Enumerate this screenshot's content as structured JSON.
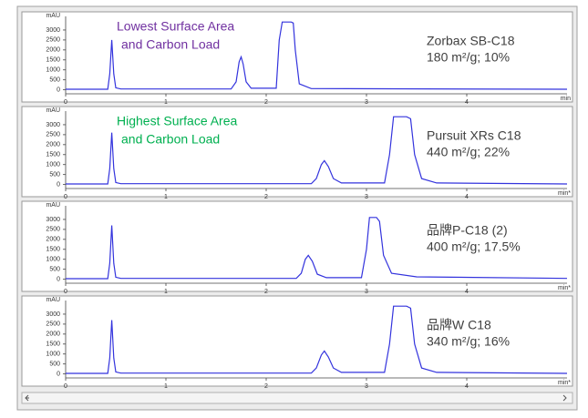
{
  "chart_data": [
    {
      "type": "line",
      "y_label": "mAU",
      "x_label": "min",
      "annotations": [
        "Lowest Surface Area",
        "and Carbon Load"
      ],
      "annotation_color": "#7030a0",
      "labels": [
        "Zorbax SB-C18",
        "180 m²/g; 10%"
      ],
      "xlim": [
        0,
        5
      ],
      "ylim": [
        -200,
        3500
      ],
      "xticks": [
        0,
        1,
        2,
        3,
        4
      ],
      "yticks": [
        0,
        500,
        1000,
        1500,
        2000,
        2500,
        3000
      ],
      "x": [
        0,
        0.42,
        0.44,
        0.46,
        0.48,
        0.5,
        0.55,
        1.65,
        1.7,
        1.73,
        1.75,
        1.77,
        1.8,
        1.85,
        2.1,
        2.13,
        2.16,
        2.25,
        2.27,
        2.29,
        2.33,
        2.45,
        5
      ],
      "series": [
        {
          "color": "#3333dd",
          "values": [
            30,
            30,
            800,
            2500,
            800,
            100,
            40,
            40,
            400,
            1400,
            1650,
            1300,
            400,
            80,
            80,
            2500,
            3400,
            3400,
            3350,
            2000,
            300,
            60,
            30
          ]
        }
      ]
    },
    {
      "type": "line",
      "y_label": "mAU",
      "x_label": "min*",
      "annotations": [
        "Highest Surface Area",
        "and Carbon Load"
      ],
      "annotation_color": "#00b050",
      "labels": [
        "Pursuit XRs C18",
        "440 m²/g; 22%"
      ],
      "xlim": [
        0,
        5
      ],
      "ylim": [
        -200,
        3500
      ],
      "xticks": [
        0,
        1,
        2,
        3,
        4
      ],
      "yticks": [
        0,
        500,
        1000,
        1500,
        2000,
        2500,
        3000
      ],
      "x": [
        0,
        0.42,
        0.44,
        0.46,
        0.48,
        0.5,
        0.55,
        2.45,
        2.5,
        2.55,
        2.58,
        2.62,
        2.67,
        2.75,
        3.18,
        3.23,
        3.27,
        3.4,
        3.44,
        3.48,
        3.55,
        3.7,
        5
      ],
      "series": [
        {
          "color": "#3333dd",
          "values": [
            30,
            30,
            800,
            2600,
            800,
            100,
            40,
            40,
            300,
            1000,
            1200,
            900,
            300,
            80,
            80,
            1500,
            3400,
            3400,
            3300,
            1500,
            300,
            80,
            30
          ]
        }
      ]
    },
    {
      "type": "line",
      "y_label": "mAU",
      "x_label": "min*",
      "labels": [
        "品牌P-C18 (2)",
        "400 m²/g; 17.5%"
      ],
      "xlim": [
        0,
        5
      ],
      "ylim": [
        -200,
        3500
      ],
      "xticks": [
        0,
        1,
        2,
        3,
        4
      ],
      "yticks": [
        0,
        500,
        1000,
        1500,
        2000,
        2500,
        3000
      ],
      "x": [
        0,
        0.42,
        0.44,
        0.46,
        0.48,
        0.5,
        0.55,
        2.3,
        2.35,
        2.39,
        2.42,
        2.46,
        2.51,
        2.6,
        2.95,
        3.0,
        3.03,
        3.1,
        3.13,
        3.17,
        3.25,
        3.5,
        5
      ],
      "series": [
        {
          "color": "#3333dd",
          "values": [
            30,
            30,
            800,
            2700,
            800,
            100,
            40,
            40,
            300,
            1000,
            1200,
            900,
            250,
            80,
            80,
            1500,
            3100,
            3100,
            2900,
            1200,
            300,
            120,
            40
          ]
        }
      ]
    },
    {
      "type": "line",
      "y_label": "mAU",
      "x_label": "min*",
      "labels": [
        "品牌W C18",
        "340 m²/g; 16%"
      ],
      "xlim": [
        0,
        5
      ],
      "ylim": [
        -200,
        3500
      ],
      "xticks": [
        0,
        1,
        2,
        3,
        4
      ],
      "yticks": [
        0,
        500,
        1000,
        1500,
        2000,
        2500,
        3000
      ],
      "x": [
        0,
        0.42,
        0.44,
        0.46,
        0.48,
        0.5,
        0.55,
        2.45,
        2.5,
        2.55,
        2.58,
        2.62,
        2.67,
        2.75,
        3.18,
        3.23,
        3.27,
        3.4,
        3.44,
        3.48,
        3.55,
        3.7,
        5
      ],
      "series": [
        {
          "color": "#3333dd",
          "values": [
            30,
            30,
            800,
            2700,
            800,
            100,
            40,
            40,
            300,
            950,
            1150,
            850,
            300,
            80,
            80,
            1500,
            3400,
            3400,
            3300,
            1500,
            300,
            80,
            30
          ]
        }
      ]
    }
  ]
}
